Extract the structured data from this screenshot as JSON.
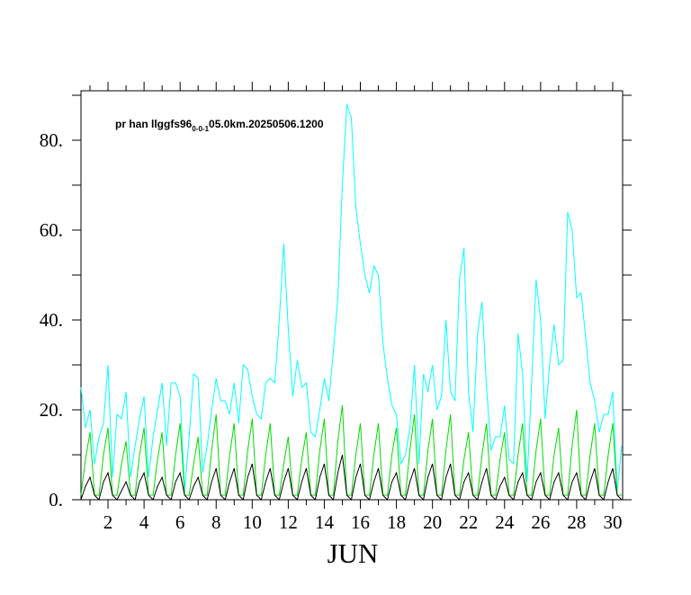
{
  "chart_data": {
    "type": "line",
    "title": "pr han llggfs96",
    "title_sub": "0-0-1",
    "title_rest": "05.0km.20250506.1200",
    "xlabel": "JUN",
    "x": [
      0.5,
      0.75,
      1,
      1.25,
      1.5,
      1.75,
      2,
      2.25,
      2.5,
      2.75,
      3,
      3.25,
      3.5,
      3.75,
      4,
      4.25,
      4.5,
      4.75,
      5,
      5.25,
      5.5,
      5.75,
      6,
      6.25,
      6.5,
      6.75,
      7,
      7.25,
      7.5,
      7.75,
      8,
      8.25,
      8.5,
      8.75,
      9,
      9.25,
      9.5,
      9.75,
      10,
      10.25,
      10.5,
      10.75,
      11,
      11.25,
      11.5,
      11.75,
      12,
      12.25,
      12.5,
      12.75,
      13,
      13.25,
      13.5,
      13.75,
      14,
      14.25,
      14.5,
      14.75,
      15,
      15.25,
      15.5,
      15.75,
      16,
      16.25,
      16.5,
      16.75,
      17,
      17.25,
      17.5,
      17.75,
      18,
      18.25,
      18.5,
      18.75,
      19,
      19.25,
      19.5,
      19.75,
      20,
      20.25,
      20.5,
      20.75,
      21,
      21.25,
      21.5,
      21.75,
      22,
      22.25,
      22.5,
      22.75,
      23,
      23.25,
      23.5,
      23.75,
      24,
      24.25,
      24.5,
      24.75,
      25,
      25.25,
      25.5,
      25.75,
      26,
      26.25,
      26.5,
      26.75,
      27,
      27.25,
      27.5,
      27.75,
      28,
      28.25,
      28.5,
      28.75,
      29,
      29.25,
      29.5,
      29.75,
      30,
      30.25,
      30.5
    ],
    "series": [
      {
        "color": "#00ffff",
        "values": [
          25,
          16,
          20,
          8,
          14,
          17,
          30,
          5,
          19,
          18,
          24,
          5,
          12,
          18,
          23,
          5,
          14,
          20,
          26,
          12,
          26,
          26,
          23,
          2,
          14,
          28,
          27,
          6,
          12,
          20,
          27,
          22,
          22,
          19,
          26,
          17,
          30,
          29,
          23,
          19,
          18,
          26,
          27,
          26,
          40,
          57,
          38,
          23,
          31,
          25,
          26,
          15,
          14,
          20,
          27,
          22,
          33,
          45,
          70,
          88,
          85,
          65,
          57,
          50,
          46,
          52,
          50,
          35,
          27,
          21,
          19,
          8,
          10,
          16,
          30,
          8,
          28,
          24,
          30,
          20,
          23,
          40,
          24,
          22,
          49,
          56,
          24,
          15,
          37,
          44,
          25,
          11,
          14,
          14,
          21,
          9,
          8,
          37,
          28,
          4,
          26,
          49,
          40,
          18,
          30,
          39,
          30,
          31,
          64,
          60,
          45,
          46,
          36,
          26,
          22,
          15,
          19,
          19,
          24,
          2,
          12
        ]
      },
      {
        "color": "#00dd00",
        "values": [
          1,
          9,
          15,
          1,
          1,
          10,
          16,
          1,
          1,
          8,
          13,
          1,
          1,
          10,
          16,
          1,
          1,
          9,
          15,
          1,
          1,
          10,
          17,
          1,
          1,
          8,
          14,
          1,
          1,
          11,
          19,
          1,
          1,
          10,
          17,
          1,
          1,
          11,
          18,
          1,
          1,
          10,
          17,
          1,
          1,
          8,
          14,
          1,
          1,
          9,
          15,
          1,
          1,
          11,
          18,
          1,
          1,
          13,
          21,
          1,
          1,
          10,
          17,
          1,
          1,
          10,
          17,
          1,
          1,
          10,
          16,
          1,
          1,
          11,
          19,
          1,
          1,
          11,
          18,
          1,
          1,
          11,
          19,
          1,
          1,
          9,
          15,
          1,
          1,
          10,
          17,
          1,
          1,
          9,
          15,
          1,
          1,
          10,
          17,
          1,
          1,
          11,
          18,
          1,
          1,
          10,
          16,
          1,
          1,
          12,
          20,
          1,
          1,
          10,
          17,
          1,
          1,
          10,
          17,
          1,
          1
        ]
      },
      {
        "color": "#000000",
        "values": [
          0,
          3,
          5,
          1,
          0,
          4,
          6,
          1,
          0,
          2,
          4,
          1,
          0,
          4,
          6,
          1,
          0,
          3,
          5,
          1,
          0,
          4,
          6,
          1,
          0,
          3,
          5,
          1,
          0,
          4,
          7,
          1,
          0,
          4,
          7,
          1,
          0,
          5,
          8,
          1,
          0,
          4,
          7,
          1,
          0,
          4,
          7,
          1,
          0,
          4,
          7,
          1,
          0,
          5,
          8,
          1,
          0,
          6,
          10,
          1,
          0,
          5,
          8,
          1,
          0,
          4,
          7,
          1,
          0,
          4,
          6,
          1,
          0,
          4,
          7,
          1,
          0,
          5,
          8,
          1,
          0,
          5,
          8,
          1,
          0,
          4,
          6,
          1,
          0,
          4,
          7,
          1,
          0,
          3,
          5,
          1,
          0,
          4,
          6,
          1,
          0,
          4,
          6,
          1,
          0,
          4,
          6,
          1,
          0,
          4,
          6,
          1,
          0,
          4,
          7,
          1,
          0,
          4,
          7,
          1,
          0
        ]
      }
    ],
    "xlim": [
      0.5,
      30.55
    ],
    "xticks": [
      2,
      4,
      6,
      8,
      10,
      12,
      14,
      16,
      18,
      20,
      22,
      24,
      26,
      28,
      30
    ],
    "xminorticks": [
      1,
      3,
      5,
      7,
      9,
      11,
      13,
      15,
      17,
      19,
      21,
      23,
      25,
      27,
      29
    ],
    "ylim": [
      0,
      91
    ],
    "yticks": [
      {
        "value": 0,
        "label": "0."
      },
      {
        "value": 20,
        "label": "20."
      },
      {
        "value": 40,
        "label": "40."
      },
      {
        "value": 60,
        "label": "60."
      },
      {
        "value": 80,
        "label": "80."
      }
    ],
    "yminorticks": [
      10,
      30,
      50,
      70,
      90
    ]
  }
}
